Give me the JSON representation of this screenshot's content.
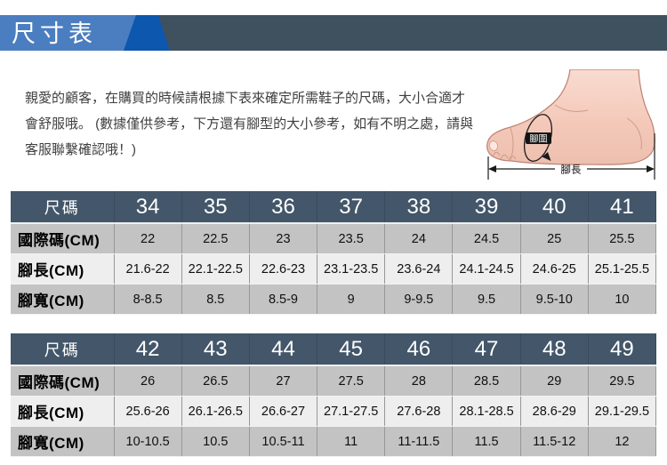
{
  "colors": {
    "banner_blue": "#4b7ec0",
    "banner_deep_blue": "#0d57ae",
    "banner_slate": "#3f505f",
    "table_header": "#43566a",
    "row_gray": "#c3c3c3",
    "row_light": "#eeeeee",
    "text_dark": "#3f3f3f"
  },
  "banner": {
    "title": "尺寸表"
  },
  "intro": {
    "text": "親愛的顧客，在購買的時候請根據下表來確定所需鞋子的尺碼，大小合適才會舒服哦。 (數據僅供參考，下方還有腳型的大小參考，如有不明之處，請與客服聯繫確認哦！)"
  },
  "foot_diagram": {
    "girth_label": "腳圍",
    "length_label": "腳長"
  },
  "size_tables": [
    {
      "header_label": "尺碼",
      "sizes": [
        "34",
        "35",
        "36",
        "37",
        "38",
        "39",
        "40",
        "41"
      ],
      "rows": [
        {
          "label": "國際碼(CM)",
          "values": [
            "22",
            "22.5",
            "23",
            "23.5",
            "24",
            "24.5",
            "25",
            "25.5"
          ]
        },
        {
          "label": "腳長(CM)",
          "values": [
            "21.6-22",
            "22.1-22.5",
            "22.6-23",
            "23.1-23.5",
            "23.6-24",
            "24.1-24.5",
            "24.6-25",
            "25.1-25.5"
          ]
        },
        {
          "label": "腳寬(CM)",
          "values": [
            "8-8.5",
            "8.5",
            "8.5-9",
            "9",
            "9-9.5",
            "9.5",
            "9.5-10",
            "10"
          ]
        }
      ]
    },
    {
      "header_label": "尺碼",
      "sizes": [
        "42",
        "43",
        "44",
        "45",
        "46",
        "47",
        "48",
        "49"
      ],
      "rows": [
        {
          "label": "國際碼(CM)",
          "values": [
            "26",
            "26.5",
            "27",
            "27.5",
            "28",
            "28.5",
            "29",
            "29.5"
          ]
        },
        {
          "label": "腳長(CM)",
          "values": [
            "25.6-26",
            "26.1-26.5",
            "26.6-27",
            "27.1-27.5",
            "27.6-28",
            "28.1-28.5",
            "28.6-29",
            "29.1-29.5"
          ]
        },
        {
          "label": "腳寬(CM)",
          "values": [
            "10-10.5",
            "10.5",
            "10.5-11",
            "11",
            "11-11.5",
            "11.5",
            "11.5-12",
            "12"
          ]
        }
      ]
    }
  ]
}
